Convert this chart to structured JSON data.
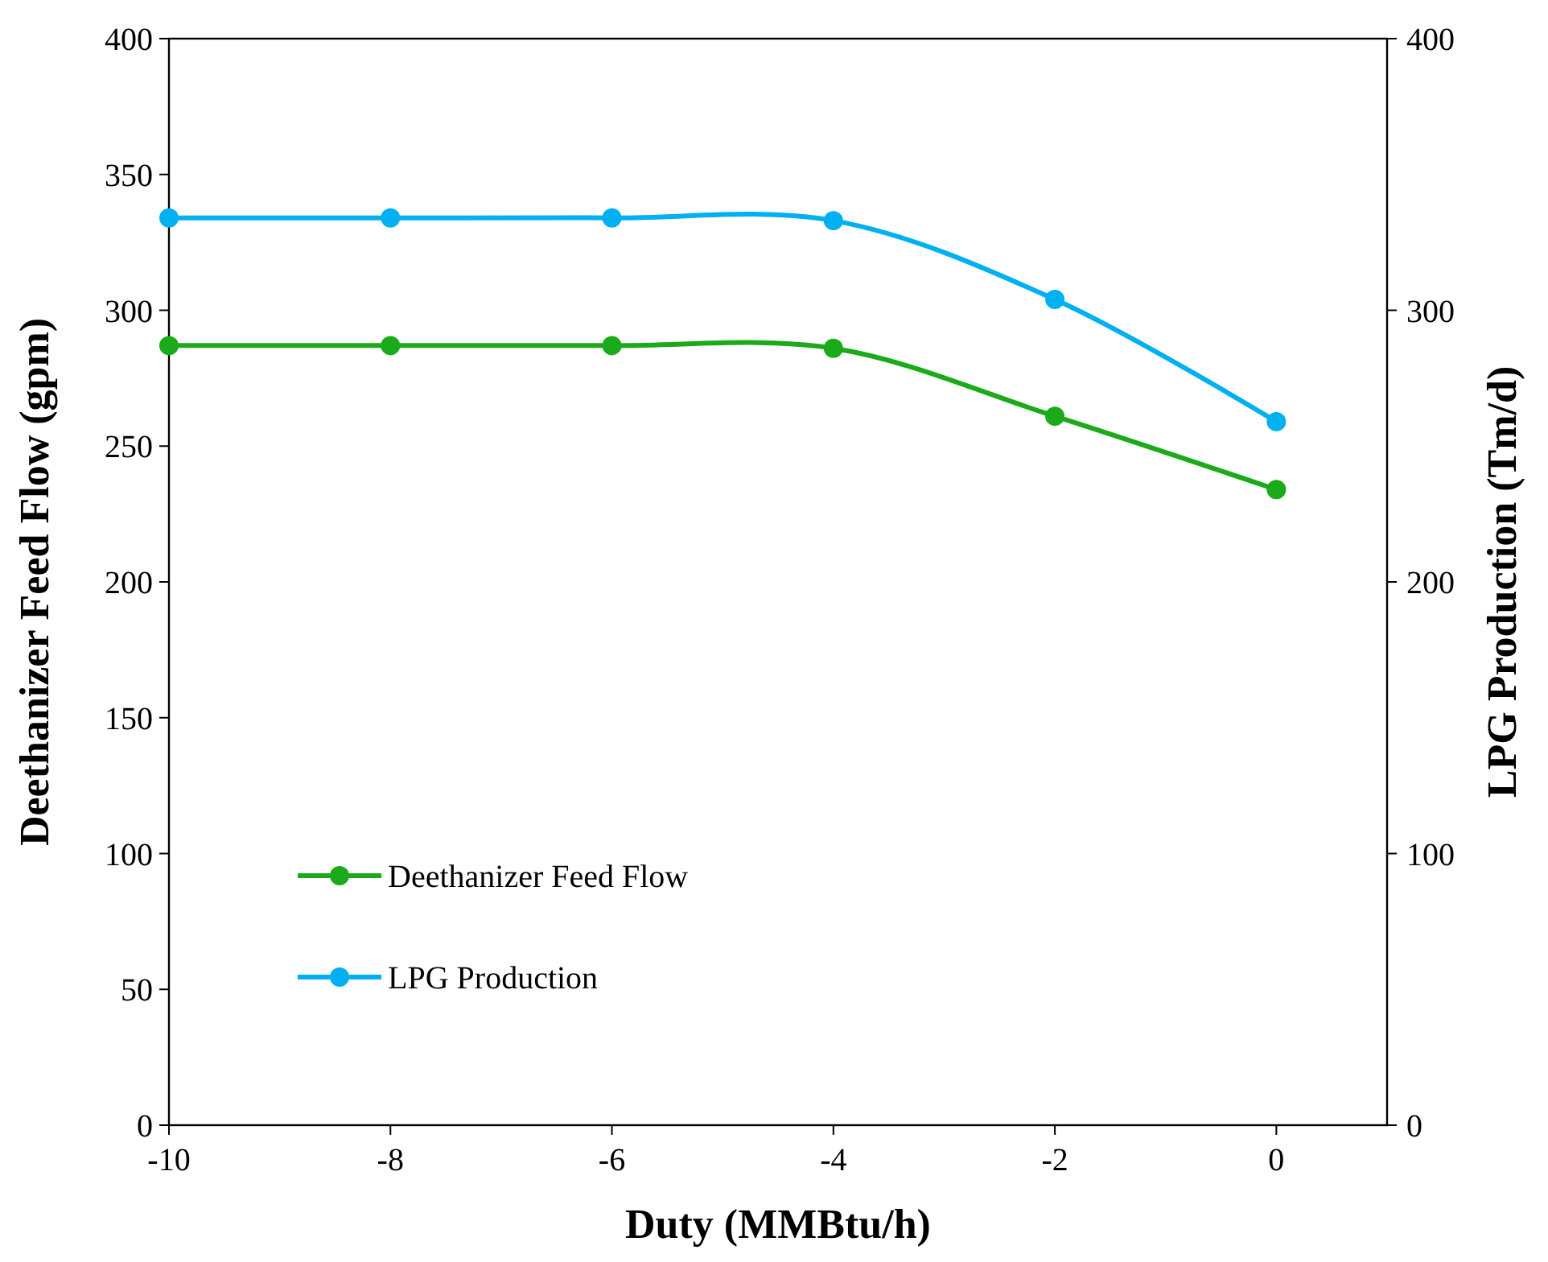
{
  "chart_data": {
    "type": "line",
    "xlabel": "Duty (MMBtu/h)",
    "ylabel": "Deethanizer Feed Flow (gpm)",
    "y2label": "LPG Production  (Tm/d)",
    "x": [
      -10,
      -8,
      -6,
      -4,
      -2,
      0
    ],
    "xlim": [
      -10,
      1
    ],
    "xticks": [
      -10,
      -8,
      -6,
      -4,
      -2,
      0
    ],
    "ylim": [
      0,
      400
    ],
    "yticks": [
      0,
      50,
      100,
      150,
      200,
      250,
      300,
      350,
      400
    ],
    "y2lim": [
      0,
      400
    ],
    "y2ticks": [
      0,
      100,
      200,
      300,
      400
    ],
    "series": [
      {
        "name": "Deethanizer Feed Flow",
        "color": "#1aaa1a",
        "values": [
          287,
          287,
          287,
          286,
          261,
          234
        ]
      },
      {
        "name": "LPG Production",
        "color": "#00b0f0",
        "values": [
          334,
          334,
          334,
          333,
          304,
          259
        ]
      }
    ],
    "marker": "circle",
    "line_style": "solid",
    "grid": false,
    "legend": "bottom left"
  }
}
